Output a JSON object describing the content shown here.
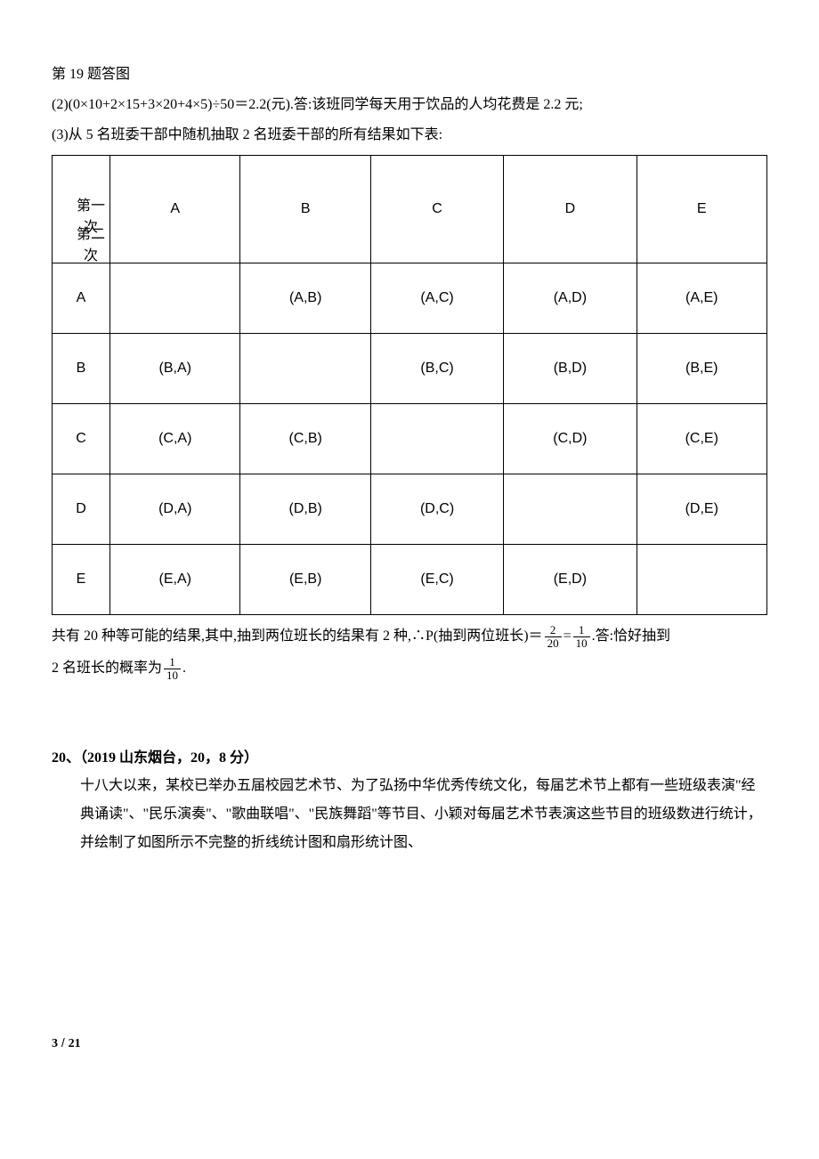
{
  "header": {
    "figcaption": "第 19 题答图",
    "line2": "(2)(0×10+2×15+3×20+4×5)÷50＝2.2(元).答:该班同学每天用于饮品的人均花费是 2.2 元;",
    "line3": "(3)从 5 名班委干部中随机抽取 2 名班委干部的所有结果如下表:"
  },
  "table": {
    "corner_first": "第一次",
    "corner_second": "第二次",
    "columns": [
      "A",
      "B",
      "C",
      "D",
      "E"
    ],
    "row_headers": [
      "A",
      "B",
      "C",
      "D",
      "E"
    ],
    "cells": [
      [
        "",
        "(A,B)",
        "(A,C)",
        "(A,D)",
        "(A,E)"
      ],
      [
        "(B,A)",
        "",
        "(B,C)",
        "(B,D)",
        "(B,E)"
      ],
      [
        "(C,A)",
        "(C,B)",
        "",
        "(C,D)",
        "(C,E)"
      ],
      [
        "(D,A)",
        "(D,B)",
        "(D,C)",
        "",
        "(D,E)"
      ],
      [
        "(E,A)",
        "(E,B)",
        "(E,C)",
        "(E,D)",
        ""
      ]
    ]
  },
  "conclusion": {
    "text_before_frac1": "共有 20 种等可能的结果,其中,抽到两位班长的结果有 2 种,∴P(抽到两位班长)＝",
    "frac1_num": "2",
    "frac1_den": "20",
    "text_eq": "=",
    "frac2_num": "1",
    "frac2_den": "10",
    "text_after_frac2": ".答:恰好抽到",
    "line2_before": "2 名班长的概率为",
    "frac3_num": "1",
    "frac3_den": "10",
    "line2_after": "."
  },
  "q20": {
    "title": "20、（2019 山东烟台，20，8 分）",
    "body": "十八大以来，某校已举办五届校园艺术节、为了弘扬中华优秀传统文化，每届艺术节上都有一些班级表演\"经典诵读\"、\"民乐演奏\"、\"歌曲联唱\"、\"民族舞蹈\"等节目、小颖对每届艺术节表演这些节目的班级数进行统计，并绘制了如图所示不完整的折线统计图和扇形统计图、"
  },
  "footer": {
    "page_current": "3",
    "page_total": "21"
  }
}
